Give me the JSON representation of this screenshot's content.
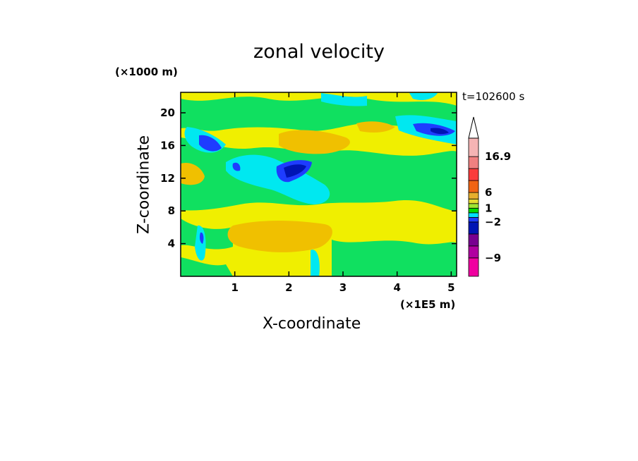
{
  "chart_data": {
    "type": "heatmap",
    "title": "zonal velocity",
    "xlabel": "X-coordinate",
    "ylabel": "Z-coordinate",
    "x_unit": "(×1E5 m)",
    "z_unit": "(×1000 m)",
    "time_label": "t=102600 s",
    "xlim": [
      0,
      5.1
    ],
    "ylim": [
      0,
      22.5
    ],
    "x_ticks": [
      "1",
      "2",
      "3",
      "4",
      "5"
    ],
    "x_tick_values": [
      1,
      2,
      3,
      4,
      5
    ],
    "y_ticks": [
      "4",
      "8",
      "12",
      "16",
      "20"
    ],
    "y_tick_values": [
      4,
      8,
      12,
      16,
      20
    ],
    "colorbar": {
      "labels": [
        "16.9",
        "6",
        "1",
        "−2",
        "−9"
      ],
      "label_values": [
        16.9,
        6,
        1,
        -2,
        -9
      ],
      "levels": [
        -12,
        -9,
        -6,
        -4,
        -2,
        -1,
        0,
        1,
        2,
        4,
        6,
        10,
        13,
        16.9
      ],
      "colors": [
        "#f000a0",
        "#b000a0",
        "#780090",
        "#0014b4",
        "#1e3cff",
        "#00e1ff",
        "#00dc00",
        "#a0e632",
        "#e6dc32",
        "#e6af2d",
        "#f06414",
        "#fa3c3c",
        "#f08080",
        "#f5b4b4"
      ],
      "extend_top": "arrow"
    },
    "field_regions": [
      {
        "level": "1",
        "color": "#f0e000",
        "description_value": "background 1 to 2"
      },
      {
        "level": "0",
        "color": "#10e060",
        "value": 0.5
      },
      {
        "level": "-1",
        "color": "#00e8f0",
        "value": -1.5
      },
      {
        "level": "-2",
        "color": "#1e3cff",
        "value": -3
      },
      {
        "level": "-4",
        "color": "#0014b4",
        "value": -5
      },
      {
        "level": "2",
        "color": "#f0c000",
        "value": 3
      }
    ]
  }
}
